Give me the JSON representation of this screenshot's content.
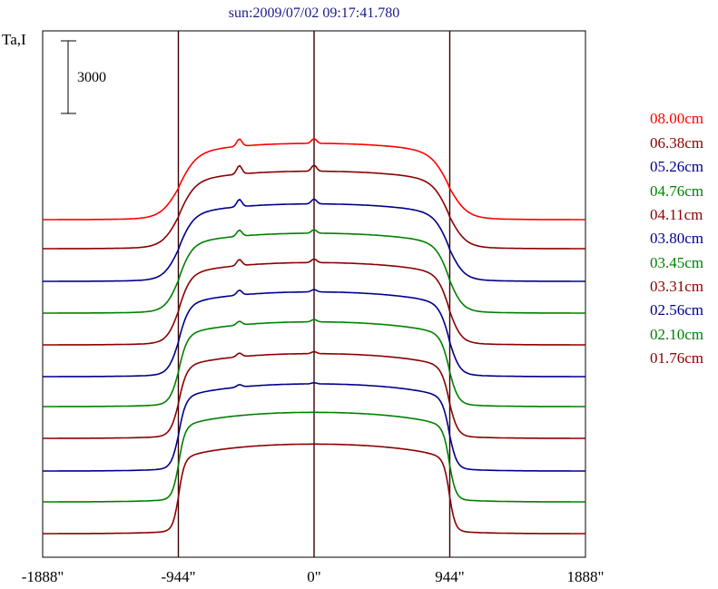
{
  "chart_data": {
    "type": "line",
    "title": "sun:2009/07/02 09:17:41.780",
    "ylabel": "Ta,I",
    "scale_bar_label": "3000",
    "xlim": [
      -1888,
      1888
    ],
    "x_ticks": [
      {
        "value": -1888,
        "label": "-1888\""
      },
      {
        "value": -944,
        "label": "-944\""
      },
      {
        "value": 0,
        "label": "0\""
      },
      {
        "value": 944,
        "label": "944\""
      },
      {
        "value": 1888,
        "label": "1888\""
      }
    ],
    "vertical_lines": [
      -944,
      0,
      944
    ],
    "colors": {
      "frame": "#000000",
      "guide": "#3a0000",
      "title": "#1a1a8c"
    },
    "series": [
      {
        "name": "08.00cm",
        "color": "#ff0000",
        "baseline": 0,
        "disk_height": 3150,
        "limb_width": 60,
        "features": [
          {
            "x": -520,
            "h": 300
          },
          {
            "x": 0,
            "h": 200
          }
        ]
      },
      {
        "name": "06.38cm",
        "color": "#8b0000",
        "baseline": 0,
        "disk_height": 3200,
        "limb_width": 55,
        "features": [
          {
            "x": -520,
            "h": 350
          },
          {
            "x": 0,
            "h": 250
          }
        ]
      },
      {
        "name": "05.26cm",
        "color": "#00008b",
        "baseline": 0,
        "disk_height": 3200,
        "limb_width": 50,
        "features": [
          {
            "x": -520,
            "h": 300
          },
          {
            "x": 0,
            "h": 200
          }
        ]
      },
      {
        "name": "04.76cm",
        "color": "#008000",
        "baseline": 0,
        "disk_height": 3300,
        "limb_width": 45,
        "features": [
          {
            "x": -520,
            "h": 250
          },
          {
            "x": 0,
            "h": 150
          }
        ]
      },
      {
        "name": "04.11cm",
        "color": "#8b0000",
        "baseline": 0,
        "disk_height": 3400,
        "limb_width": 40,
        "features": [
          {
            "x": -520,
            "h": 250
          },
          {
            "x": 0,
            "h": 150
          }
        ]
      },
      {
        "name": "03.80cm",
        "color": "#00008b",
        "baseline": 0,
        "disk_height": 3500,
        "limb_width": 35,
        "features": [
          {
            "x": -520,
            "h": 200
          },
          {
            "x": 0,
            "h": 100
          }
        ]
      },
      {
        "name": "03.45cm",
        "color": "#008000",
        "baseline": 0,
        "disk_height": 3500,
        "limb_width": 30,
        "features": [
          {
            "x": -520,
            "h": 150
          },
          {
            "x": 0,
            "h": 100
          }
        ]
      },
      {
        "name": "03.31cm",
        "color": "#8b0000",
        "baseline": 0,
        "disk_height": 3500,
        "limb_width": 28,
        "features": [
          {
            "x": -520,
            "h": 150
          },
          {
            "x": 0,
            "h": 80
          }
        ]
      },
      {
        "name": "02.56cm",
        "color": "#00008b",
        "baseline": 0,
        "disk_height": 3600,
        "limb_width": 25,
        "features": [
          {
            "x": -520,
            "h": 100
          },
          {
            "x": 0,
            "h": 50
          }
        ]
      },
      {
        "name": "02.10cm",
        "color": "#008000",
        "baseline": 0,
        "disk_height": 3700,
        "limb_width": 22,
        "features": []
      },
      {
        "name": "01.76cm",
        "color": "#8b0000",
        "baseline": 0,
        "disk_height": 3700,
        "limb_width": 20,
        "features": []
      }
    ],
    "series_offsets": [
      0.82,
      0.72,
      0.61,
      0.51,
      0.4,
      0.3,
      0.2,
      0.1,
      0.0,
      -0.1,
      -0.2
    ],
    "grid": false,
    "legend_position": "right"
  }
}
